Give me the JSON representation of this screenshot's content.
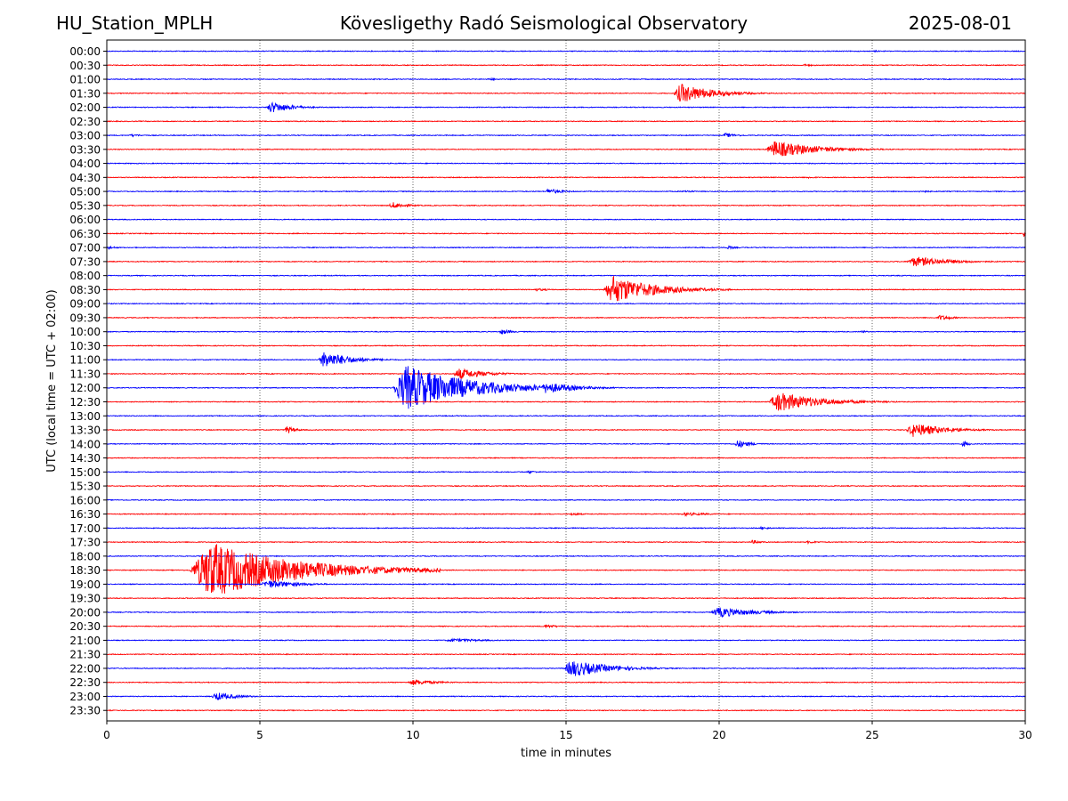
{
  "header": {
    "station": "HU_Station_MPLH",
    "observatory": "Kövesligethy Radó Seismological Observatory",
    "date": "2025-08-01"
  },
  "chart_data": {
    "type": "line",
    "title": "Kövesligethy Radó Seismological Observatory",
    "xlabel": "time in minutes",
    "ylabel": "UTC (local time = UTC + 02:00)",
    "xlim": [
      0,
      30
    ],
    "xticks": [
      "0",
      "5",
      "10",
      "15",
      "20",
      "25",
      "30"
    ],
    "grid": "vertical dotted at 5-minute marks",
    "colors": {
      "even_rows": "#0000ff",
      "odd_rows": "#ff0000"
    },
    "rows": [
      "00:00",
      "00:30",
      "01:00",
      "01:30",
      "02:00",
      "02:30",
      "03:00",
      "03:30",
      "04:00",
      "04:30",
      "05:00",
      "05:30",
      "06:00",
      "06:30",
      "07:00",
      "07:30",
      "08:00",
      "08:30",
      "09:00",
      "09:30",
      "10:00",
      "10:30",
      "11:00",
      "11:30",
      "12:00",
      "12:30",
      "13:00",
      "13:30",
      "14:00",
      "14:30",
      "15:00",
      "15:30",
      "16:00",
      "16:30",
      "17:00",
      "17:30",
      "18:00",
      "18:30",
      "19:00",
      "19:30",
      "20:00",
      "20:30",
      "21:00",
      "21:30",
      "22:00",
      "22:30",
      "23:00",
      "23:30"
    ],
    "events": [
      {
        "row": "00:00",
        "t": 25.0,
        "amp": 0.3,
        "dur": 1.0
      },
      {
        "row": "00:30",
        "t": 22.7,
        "amp": 0.4,
        "dur": 1.2
      },
      {
        "row": "01:00",
        "t": 12.4,
        "amp": 0.5,
        "dur": 1.0
      },
      {
        "row": "01:30",
        "t": 18.5,
        "amp": 3.5,
        "dur": 3.0
      },
      {
        "row": "02:00",
        "t": 5.2,
        "amp": 2.0,
        "dur": 2.0
      },
      {
        "row": "03:00",
        "t": 0.7,
        "amp": 0.5,
        "dur": 1.2
      },
      {
        "row": "03:00",
        "t": 20.1,
        "amp": 0.8,
        "dur": 1.2
      },
      {
        "row": "03:30",
        "t": 21.5,
        "amp": 3.0,
        "dur": 4.0
      },
      {
        "row": "04:30",
        "t": 22.8,
        "amp": 0.4,
        "dur": 1.0
      },
      {
        "row": "05:00",
        "t": 14.3,
        "amp": 1.0,
        "dur": 1.5
      },
      {
        "row": "05:00",
        "t": 18.8,
        "amp": 0.5,
        "dur": 1.0
      },
      {
        "row": "05:00",
        "t": 26.5,
        "amp": 0.5,
        "dur": 1.0
      },
      {
        "row": "05:30",
        "t": 9.2,
        "amp": 1.2,
        "dur": 1.5
      },
      {
        "row": "06:30",
        "t": 29.9,
        "amp": 1.5,
        "dur": 0.3
      },
      {
        "row": "07:00",
        "t": 0.0,
        "amp": 0.6,
        "dur": 0.8
      },
      {
        "row": "07:00",
        "t": 20.2,
        "amp": 0.6,
        "dur": 1.0
      },
      {
        "row": "07:30",
        "t": 26.1,
        "amp": 1.8,
        "dur": 3.5
      },
      {
        "row": "08:30",
        "t": 16.2,
        "amp": 5.0,
        "dur": 4.0
      },
      {
        "row": "08:30",
        "t": 13.9,
        "amp": 0.5,
        "dur": 1.5
      },
      {
        "row": "09:30",
        "t": 27.1,
        "amp": 1.0,
        "dur": 1.2
      },
      {
        "row": "10:00",
        "t": 12.8,
        "amp": 1.0,
        "dur": 1.0
      },
      {
        "row": "10:00",
        "t": 24.6,
        "amp": 0.4,
        "dur": 0.8
      },
      {
        "row": "11:00",
        "t": 6.9,
        "amp": 3.0,
        "dur": 2.5
      },
      {
        "row": "11:30",
        "t": 11.3,
        "amp": 2.0,
        "dur": 2.5
      },
      {
        "row": "12:00",
        "t": 9.3,
        "amp": 8.0,
        "dur": 6.0
      },
      {
        "row": "12:00",
        "t": 14.1,
        "amp": 2.0,
        "dur": 3.0
      },
      {
        "row": "12:30",
        "t": 21.6,
        "amp": 3.5,
        "dur": 4.0
      },
      {
        "row": "13:30",
        "t": 5.8,
        "amp": 1.5,
        "dur": 0.8
      },
      {
        "row": "13:30",
        "t": 26.1,
        "amp": 2.5,
        "dur": 3.0
      },
      {
        "row": "14:00",
        "t": 20.5,
        "amp": 1.5,
        "dur": 1.2
      },
      {
        "row": "14:00",
        "t": 27.9,
        "amp": 1.2,
        "dur": 0.6
      },
      {
        "row": "15:00",
        "t": 13.7,
        "amp": 0.6,
        "dur": 0.8
      },
      {
        "row": "16:30",
        "t": 15.1,
        "amp": 0.6,
        "dur": 1.0
      },
      {
        "row": "16:30",
        "t": 18.7,
        "amp": 0.6,
        "dur": 2.5
      },
      {
        "row": "17:00",
        "t": 21.3,
        "amp": 0.5,
        "dur": 1.0
      },
      {
        "row": "17:30",
        "t": 21.0,
        "amp": 0.7,
        "dur": 1.0
      },
      {
        "row": "17:30",
        "t": 22.8,
        "amp": 0.5,
        "dur": 1.2
      },
      {
        "row": "18:30",
        "t": 2.7,
        "amp": 10.0,
        "dur": 8.0
      },
      {
        "row": "19:00",
        "t": 5.0,
        "amp": 1.5,
        "dur": 3.0
      },
      {
        "row": "20:00",
        "t": 19.7,
        "amp": 1.8,
        "dur": 3.5
      },
      {
        "row": "20:30",
        "t": 14.2,
        "amp": 0.6,
        "dur": 1.5
      },
      {
        "row": "21:00",
        "t": 11.0,
        "amp": 0.6,
        "dur": 3.5
      },
      {
        "row": "22:00",
        "t": 14.9,
        "amp": 3.0,
        "dur": 3.5
      },
      {
        "row": "22:30",
        "t": 9.8,
        "amp": 1.0,
        "dur": 2.5
      },
      {
        "row": "23:00",
        "t": 3.4,
        "amp": 1.5,
        "dur": 2.0
      }
    ]
  }
}
